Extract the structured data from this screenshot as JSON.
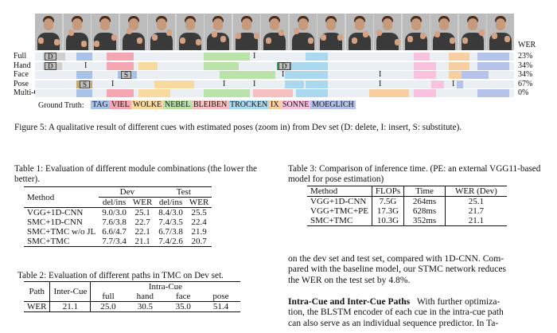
{
  "figure": {
    "wer_header": "WER",
    "rows": [
      {
        "label": "Full",
        "wer": "23%",
        "marks": [
          {
            "t": "D",
            "boxed": true
          },
          {
            "t": "I",
            "boxed": false
          }
        ]
      },
      {
        "label": "Hand",
        "wer": "34%",
        "marks": [
          {
            "t": "D",
            "boxed": true
          },
          {
            "t": "I",
            "boxed": false
          },
          {
            "t": "D",
            "boxed": true
          }
        ]
      },
      {
        "label": "Face",
        "wer": "34%",
        "marks": [
          {
            "t": "S",
            "boxed": true
          },
          {
            "t": "I",
            "boxed": false
          },
          {
            "t": "I",
            "boxed": false
          }
        ]
      },
      {
        "label": "Pose",
        "wer": "67%",
        "marks": [
          {
            "t": "S",
            "boxed": true
          },
          {
            "t": "I",
            "boxed": false
          },
          {
            "t": "I",
            "boxed": false
          },
          {
            "t": "I",
            "boxed": false
          },
          {
            "t": "I",
            "boxed": false
          },
          {
            "t": "I",
            "boxed": false
          }
        ]
      },
      {
        "label": "Multi-Cue",
        "wer": "0%",
        "marks": []
      }
    ],
    "ground_truth_label": "Ground Truth:",
    "ground_truth": [
      {
        "word": "TAG",
        "color": "#a9c3e8"
      },
      {
        "word": "VIEL",
        "color": "#f4a6b2"
      },
      {
        "word": "WOLKE",
        "color": "#f8d9a0"
      },
      {
        "word": "NEBEL",
        "color": "#b9e3a9"
      },
      {
        "word": "BLEIBEN",
        "color": "#f7c0c0"
      },
      {
        "word": "TROCKEN",
        "color": "#a9d8ef"
      },
      {
        "word": "IX",
        "color": "#f8cfa0"
      },
      {
        "word": "SONNE",
        "color": "#f9c3e0"
      },
      {
        "word": "MOEGLICH",
        "color": "#b5c3ea"
      }
    ],
    "caption": "Figure 5: A qualitative result of different cues with estimated poses (zoom in) from Dev set (D: delete, I: insert, S: substitute)."
  },
  "table1": {
    "caption": "Table 1: Evaluation of different module combinations (the lower the better).",
    "col_method": "Method",
    "group_dev": "Dev",
    "group_test": "Test",
    "sub": [
      "del/ins",
      "WER",
      "del/ins",
      "WER"
    ],
    "rows": [
      [
        "VGG+1D-CNN",
        "9.0/3.0",
        "25.1",
        "8.4/3.0",
        "25.5"
      ],
      [
        "SMC+1D-CNN",
        "7.6/3.8",
        "22.7",
        "7.4/3.5",
        "22.4"
      ],
      [
        "SMC+TMC w/o JL",
        "6.6/4.7",
        "22.1",
        "6.7/3.8",
        "21.9"
      ],
      [
        "SMC+TMC",
        "7.7/3.4",
        "21.1",
        "7.4/2.6",
        "20.7"
      ]
    ]
  },
  "table2": {
    "caption": "Table 2: Evaluation of different paths in TMC on Dev set.",
    "col_path": "Path",
    "col_inter": "Inter-Cue",
    "group_intra": "Intra-Cue",
    "sub": [
      "full",
      "hand",
      "face",
      "pose"
    ],
    "row": [
      "WER",
      "21.1",
      "25.0",
      "30.5",
      "35.0",
      "51.4"
    ]
  },
  "table3": {
    "caption": "Table 3: Comparison of inference time. (PE: an external VGG11-based model for pose estimation)",
    "headers": [
      "Method",
      "FLOPs",
      "Time",
      "WER (Dev)"
    ],
    "rows": [
      [
        "VGG+1D-CNN",
        "7.5G",
        "264ms",
        "25.1"
      ],
      [
        "VGG+TMC+PE",
        "17.3G",
        "628ms",
        "21.7"
      ],
      [
        "SMC+TMC",
        "10.3G",
        "352ms",
        "21.1"
      ]
    ]
  },
  "body": {
    "para1_lines": [
      "on the dev set and test set, compared with 1D-CNN. Com-",
      "pared with the baseline model, our STMC network reduces",
      "the WER on the test set by 4.8%."
    ],
    "section_title": "Intra-Cue and Inter-Cue Paths",
    "para2_first": "With further optimiza-",
    "para2_lines": [
      "tion, the BLSTM encoder of each cue in the intra-cue path",
      "can also serve as an individual sequence predictor. In Ta-"
    ]
  }
}
